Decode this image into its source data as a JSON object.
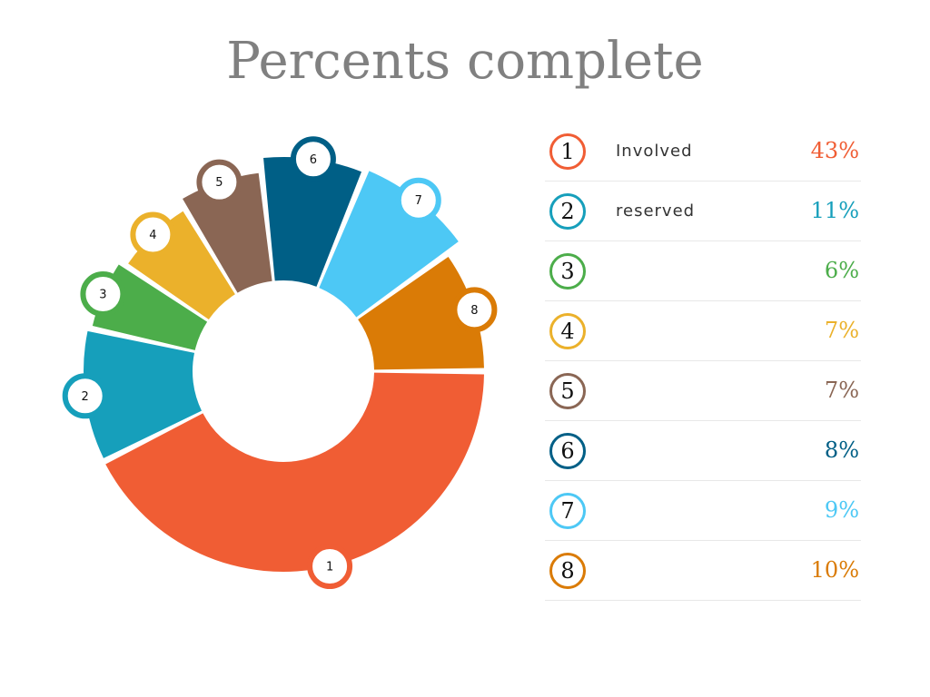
{
  "chart_data": {
    "type": "pie",
    "title": "Percents complete",
    "slices": [
      {
        "marker": "1",
        "label": "Involved",
        "value": 43,
        "value_text": "43%",
        "color": "#f05d34"
      },
      {
        "marker": "2",
        "label": "reserved",
        "value": 11,
        "value_text": "11%",
        "color": "#169fbb"
      },
      {
        "marker": "3",
        "label": "",
        "value": 6,
        "value_text": "6%",
        "color": "#4cad4a"
      },
      {
        "marker": "4",
        "label": "",
        "value": 7,
        "value_text": "7%",
        "color": "#ebb12b"
      },
      {
        "marker": "5",
        "label": "",
        "value": 7,
        "value_text": "7%",
        "color": "#8a6654"
      },
      {
        "marker": "6",
        "label": "",
        "value": 8,
        "value_text": "8%",
        "color": "#005f86"
      },
      {
        "marker": "7",
        "label": "",
        "value": 9,
        "value_text": "9%",
        "color": "#4dc8f5"
      },
      {
        "marker": "8",
        "label": "",
        "value": 10,
        "value_text": "10%",
        "color": "#da7b06"
      }
    ]
  }
}
